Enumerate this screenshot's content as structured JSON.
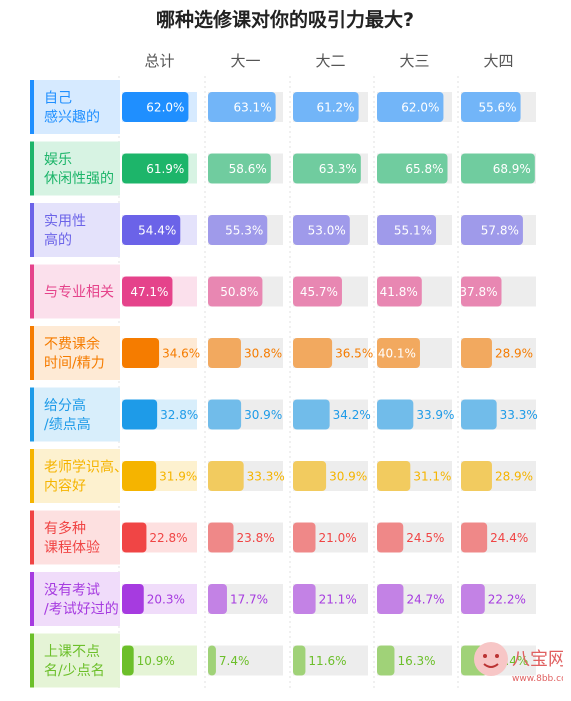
{
  "chart_data": {
    "type": "bar",
    "title": "哪种选修课对你的吸引力最大?",
    "columns": [
      "总计",
      "大一",
      "大二",
      "大三",
      "大四"
    ],
    "categories": [
      {
        "label": [
          "自己",
          "感兴趣的"
        ],
        "color": "#1f8fff",
        "light": "#d6eaff",
        "values": [
          62.0,
          63.1,
          61.2,
          62.0,
          55.6
        ]
      },
      {
        "label": [
          "娱乐",
          "休闲性强的"
        ],
        "color": "#1db56a",
        "light": "#d7f3e3",
        "values": [
          61.9,
          58.6,
          63.3,
          65.8,
          68.9
        ]
      },
      {
        "label": [
          "实用性",
          "高的"
        ],
        "color": "#6b63e8",
        "light": "#e4e2fb",
        "values": [
          54.4,
          55.3,
          53.0,
          55.1,
          57.8
        ]
      },
      {
        "label": [
          "与专业相关"
        ],
        "color": "#e5438b",
        "light": "#fbe0ec",
        "values": [
          47.1,
          50.8,
          45.7,
          41.8,
          37.8
        ]
      },
      {
        "label": [
          "不费课余",
          "时间/精力"
        ],
        "color": "#f57c00",
        "light": "#feead5",
        "values": [
          34.6,
          30.8,
          36.5,
          40.1,
          28.9
        ]
      },
      {
        "label": [
          "给分高",
          "/绩点高"
        ],
        "color": "#1e9be8",
        "light": "#d8eefb",
        "values": [
          32.8,
          30.9,
          34.2,
          33.9,
          33.3
        ]
      },
      {
        "label": [
          "老师学识高、",
          "内容好"
        ],
        "color": "#f5b400",
        "light": "#fdf1cf",
        "values": [
          31.9,
          33.3,
          30.9,
          31.1,
          28.9
        ]
      },
      {
        "label": [
          "有多种",
          "课程体验"
        ],
        "color": "#f04545",
        "light": "#fde0e0",
        "values": [
          22.8,
          23.8,
          21.0,
          24.5,
          24.4
        ]
      },
      {
        "label": [
          "没有考试",
          "/考试好过的"
        ],
        "color": "#a63be0",
        "light": "#f0dcfa",
        "values": [
          20.3,
          17.7,
          21.1,
          24.7,
          22.2
        ]
      },
      {
        "label": [
          "上课不点",
          "名/少点名"
        ],
        "color": "#6cbf2a",
        "light": "#e5f4d6",
        "values": [
          10.9,
          7.4,
          11.6,
          16.3,
          24.4
        ]
      }
    ]
  },
  "watermark": {
    "name": "八宝网",
    "url": "www.8bb.com"
  }
}
